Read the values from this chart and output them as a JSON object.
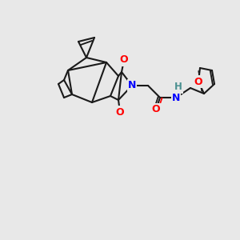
{
  "bg_color": "#e8e8e8",
  "bond_color": "#1a1a1a",
  "atom_colors": {
    "O": "#ff0000",
    "N": "#0000ff",
    "H": "#4a9090",
    "C": "#1a1a1a"
  },
  "lw": 1.5,
  "font_size": 9
}
